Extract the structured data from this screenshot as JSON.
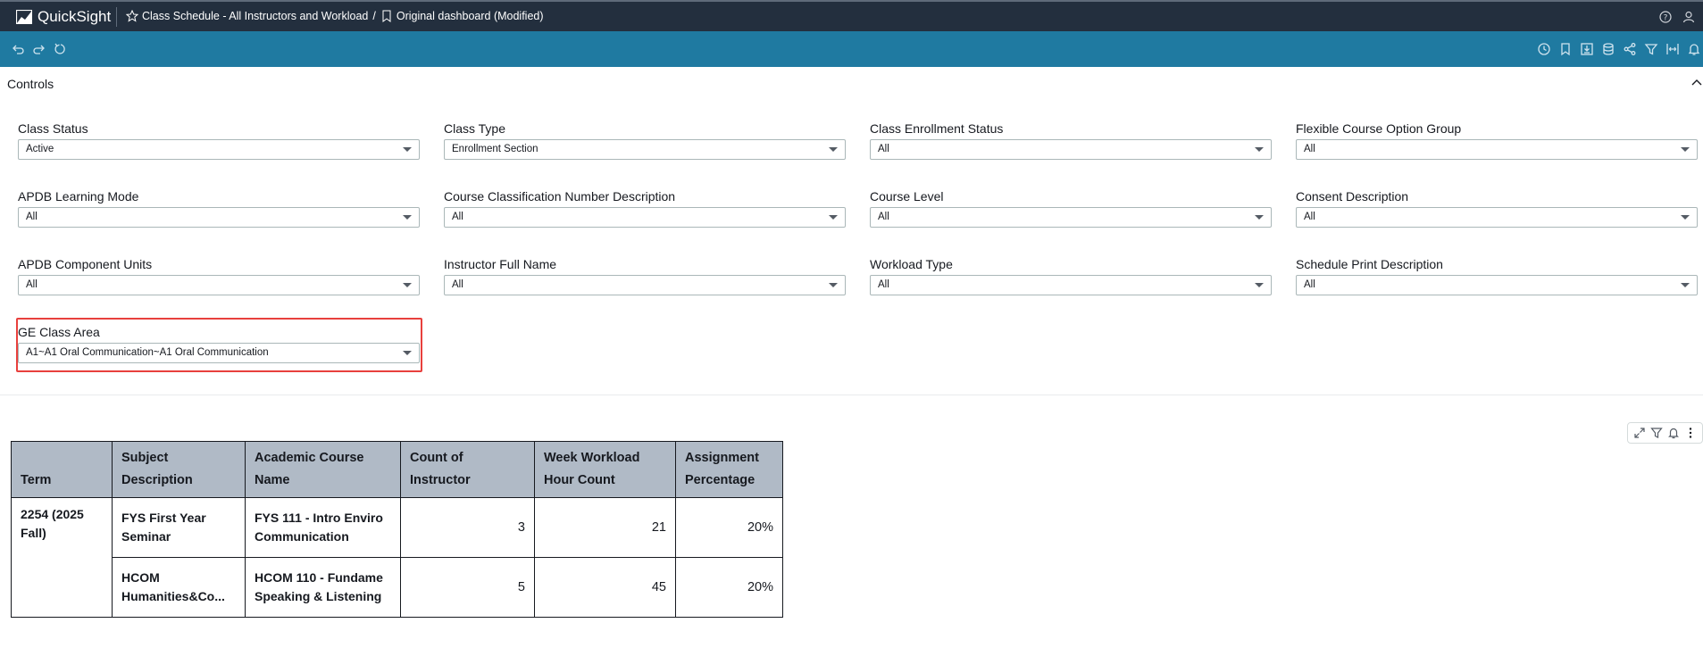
{
  "app": {
    "name": "QuickSight"
  },
  "breadcrumb": {
    "analysis": "Class Schedule - All Instructors and Workload",
    "separator": "/",
    "sheet": "Original dashboard (Modified)"
  },
  "icons": {
    "top_right": [
      "help-icon",
      "user-icon"
    ],
    "toolbar_left": [
      "undo-icon",
      "redo-icon",
      "reset-icon"
    ],
    "toolbar_right": [
      "history-icon",
      "bookmark-icon",
      "download-icon",
      "database-icon",
      "share-icon",
      "filter-icon",
      "fit-width-icon",
      "alert-icon"
    ],
    "visual": [
      "expand-icon",
      "filter-icon",
      "alert-icon",
      "more-menu-icon"
    ]
  },
  "colors": {
    "top_bar": "#232f3e",
    "toolbar": "#1f7aa1",
    "table_header": "#b0bac6",
    "highlight": "#e8403d"
  },
  "controls": {
    "title": "Controls",
    "items": [
      {
        "label": "Class Status",
        "value": "Active"
      },
      {
        "label": "Class Type",
        "value": "Enrollment Section"
      },
      {
        "label": "Class Enrollment Status",
        "value": "All"
      },
      {
        "label": "Flexible Course Option Group",
        "value": "All"
      },
      {
        "label": "APDB Learning Mode",
        "value": "All"
      },
      {
        "label": "Course Classification Number Description",
        "value": "All"
      },
      {
        "label": "Course Level",
        "value": "All"
      },
      {
        "label": "Consent Description",
        "value": "All"
      },
      {
        "label": "APDB Component Units",
        "value": "All"
      },
      {
        "label": "Instructor Full Name",
        "value": "All"
      },
      {
        "label": "Workload Type",
        "value": "All"
      },
      {
        "label": "Schedule Print Description",
        "value": "All"
      },
      {
        "label": "GE Class Area",
        "value": "A1~A1 Oral Communication~A1 Oral Communication"
      }
    ]
  },
  "table": {
    "headers": {
      "term": "Term",
      "subject": "Subject Description",
      "course": "Academic Course Name",
      "count": "Count of Instructor",
      "workload": "Week Workload Hour Count",
      "assignment": "Assignment Percentage"
    },
    "term": "2254 (2025 Fall)",
    "rows": [
      {
        "subject": "FYS First Year Seminar",
        "course": "FYS 111 - Intro Enviro Communication",
        "count": "3",
        "workload": "21",
        "assignment": "20%"
      },
      {
        "subject": "HCOM Humanities&Co...",
        "course": "HCOM 110 - Fundame Speaking & Listening",
        "count": "5",
        "workload": "45",
        "assignment": "20%"
      }
    ]
  }
}
